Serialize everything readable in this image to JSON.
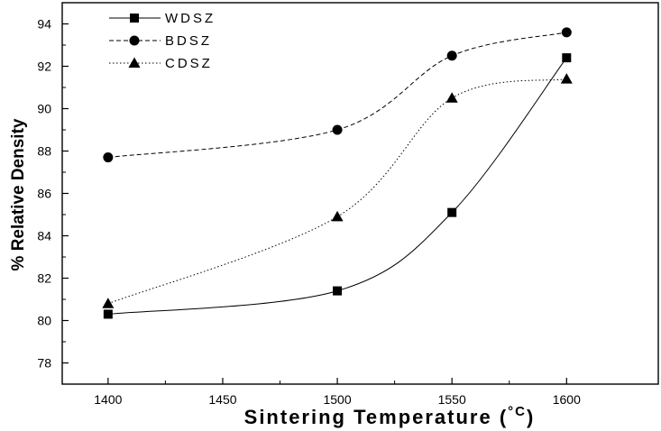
{
  "chart_data": {
    "type": "line",
    "xlabel": "Sintering Temperature (",
    "xlabel_unit": "°C",
    "xlabel_close": ")",
    "ylabel": "% Relative Density",
    "x": [
      1400,
      1500,
      1550,
      1600
    ],
    "xlim": [
      1380,
      1640
    ],
    "ylim": [
      77,
      95
    ],
    "xticks": [
      1400,
      1450,
      1500,
      1550,
      1600
    ],
    "yticks": [
      78,
      80,
      82,
      84,
      86,
      88,
      90,
      92,
      94
    ],
    "grid": false,
    "legend_position": "top-left",
    "series": [
      {
        "name": "WDSZ",
        "marker": "square",
        "line_style": "solid",
        "values": [
          80.3,
          81.4,
          85.1,
          92.4
        ]
      },
      {
        "name": "BDSZ",
        "marker": "circle",
        "line_style": "dashed",
        "values": [
          87.7,
          89.0,
          92.5,
          93.6
        ]
      },
      {
        "name": "CDSZ",
        "marker": "triangle",
        "line_style": "dotted",
        "values": [
          80.8,
          84.9,
          90.5,
          91.4
        ]
      }
    ]
  }
}
